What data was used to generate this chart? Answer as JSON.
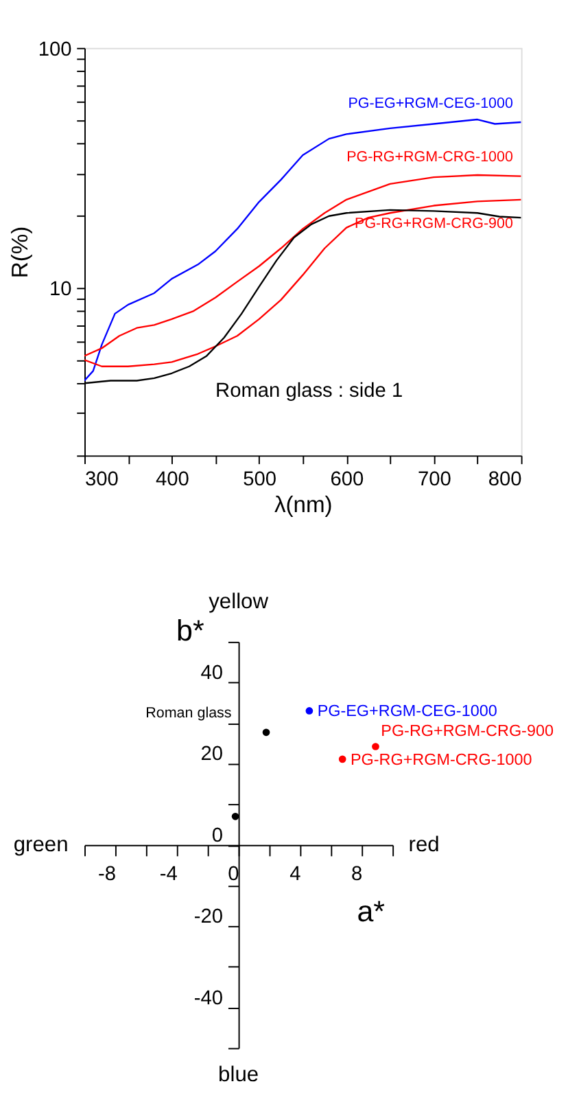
{
  "chart_data": [
    {
      "type": "line",
      "xlabel": "λ(nm)",
      "ylabel": "R(%)",
      "log": "y",
      "grid": false,
      "marker": "none",
      "line_style": "solid",
      "xlim": [
        300,
        800
      ],
      "xticks": [
        300,
        {
          "value": 350,
          "label": null
        },
        400,
        {
          "value": 450,
          "label": null
        },
        500,
        {
          "value": 550,
          "label": null
        },
        600,
        {
          "value": 650,
          "label": null
        },
        700,
        {
          "value": 750,
          "label": null
        },
        800
      ],
      "ylim": [
        2,
        100
      ],
      "yticks": [
        {
          "value": 2,
          "label": null
        },
        {
          "value": 3,
          "label": null
        },
        {
          "value": 4,
          "label": null
        },
        {
          "value": 5,
          "label": null
        },
        {
          "value": 6,
          "label": null
        },
        {
          "value": 7,
          "label": null
        },
        {
          "value": 8,
          "label": null
        },
        {
          "value": 9,
          "label": null
        },
        10,
        {
          "value": 20,
          "label": null
        },
        {
          "value": 30,
          "label": null
        },
        {
          "value": 40,
          "label": null
        },
        {
          "value": 50,
          "label": null
        },
        {
          "value": 60,
          "label": null
        },
        {
          "value": 70,
          "label": null
        },
        {
          "value": 80,
          "label": null
        },
        {
          "value": 90,
          "label": null
        },
        100
      ],
      "annotations": [
        "Roman glass : side 1"
      ],
      "series": [
        {
          "name": "PG-EG+RGM-CEG-1000",
          "color": "#0000ff",
          "x": [
            300,
            310,
            320,
            335,
            350,
            380,
            400,
            430,
            450,
            475,
            500,
            525,
            550,
            580,
            600,
            650,
            700,
            750,
            770,
            800
          ],
          "values": [
            4.1,
            4.5,
            5.8,
            7.8,
            8.5,
            9.5,
            10.9,
            12.5,
            14.2,
            17.6,
            22.8,
            28.2,
            35.7,
            41.8,
            43.7,
            46.2,
            48.2,
            50.3,
            48.2,
            49
          ]
        },
        {
          "name": "PG-RG+RGM-CRG-1000",
          "color": "#ff0000",
          "x": [
            300,
            320,
            340,
            360,
            380,
            400,
            425,
            450,
            475,
            500,
            525,
            550,
            575,
            600,
            650,
            700,
            750,
            800
          ],
          "values": [
            5.2,
            5.6,
            6.3,
            6.8,
            7.0,
            7.4,
            8.0,
            9.1,
            10.6,
            12.3,
            14.6,
            17.6,
            20.5,
            23.3,
            27.1,
            28.9,
            29.5,
            29.2
          ]
        },
        {
          "name": "PG-RG+RGM-CRG-900",
          "color": "#ff0000",
          "x": [
            300,
            320,
            350,
            380,
            400,
            430,
            450,
            475,
            500,
            525,
            550,
            575,
            600,
            625,
            650,
            700,
            750,
            800
          ],
          "values": [
            5.0,
            4.7,
            4.7,
            4.8,
            4.9,
            5.3,
            5.7,
            6.3,
            7.4,
            8.9,
            11.3,
            14.6,
            17.8,
            19.6,
            20.5,
            22.0,
            22.9,
            23.3
          ]
        },
        {
          "color": "#000000",
          "x": [
            300,
            330,
            360,
            380,
            400,
            420,
            440,
            460,
            480,
            500,
            520,
            540,
            560,
            580,
            600,
            650,
            700,
            750,
            775,
            800
          ],
          "values": [
            4.0,
            4.1,
            4.1,
            4.2,
            4.4,
            4.7,
            5.2,
            6.2,
            7.8,
            10.1,
            13.0,
            16.2,
            18.4,
            19.9,
            20.5,
            21.1,
            20.9,
            20.5,
            19.8,
            19.6
          ]
        }
      ]
    },
    {
      "type": "scatter",
      "xlabel": "a*",
      "ylabel": "b*",
      "grid": false,
      "marker": "circle",
      "xlim": [
        -10,
        10
      ],
      "xticks": [
        {
          "value": -10,
          "label": null
        },
        -8,
        {
          "value": -6,
          "label": null
        },
        -4,
        {
          "value": -2,
          "label": null
        },
        0,
        {
          "value": 2,
          "label": null
        },
        4,
        {
          "value": 6,
          "label": null
        },
        8,
        {
          "value": 10,
          "label": null
        }
      ],
      "ylim": [
        -50,
        50
      ],
      "yticks": [
        {
          "value": -50,
          "label": null
        },
        -40,
        {
          "value": -30,
          "label": null
        },
        -20,
        {
          "value": -10,
          "label": null
        },
        0,
        {
          "value": 10,
          "label": null
        },
        20,
        {
          "value": 30,
          "label": null
        },
        40,
        {
          "value": 50,
          "label": null
        }
      ],
      "annotations": [
        "green",
        "red",
        "yellow",
        "blue"
      ],
      "series": [
        {
          "name": "Roman glass",
          "color": "#000000",
          "x": [
            -0.2,
            1.8
          ],
          "values": [
            7,
            27.7
          ]
        },
        {
          "name": "PG-EG+RGM-CEG-1000",
          "color": "#0000ff",
          "x": [
            4.6
          ],
          "values": [
            33
          ]
        },
        {
          "name": "PG-RG+RGM-CRG-900",
          "color": "#ff0000",
          "x": [
            8.9
          ],
          "values": [
            24.2
          ]
        },
        {
          "name": "PG-RG+RGM-CRG-1000",
          "color": "#ff0000",
          "x": [
            6.75
          ],
          "values": [
            21.1
          ]
        }
      ]
    }
  ]
}
